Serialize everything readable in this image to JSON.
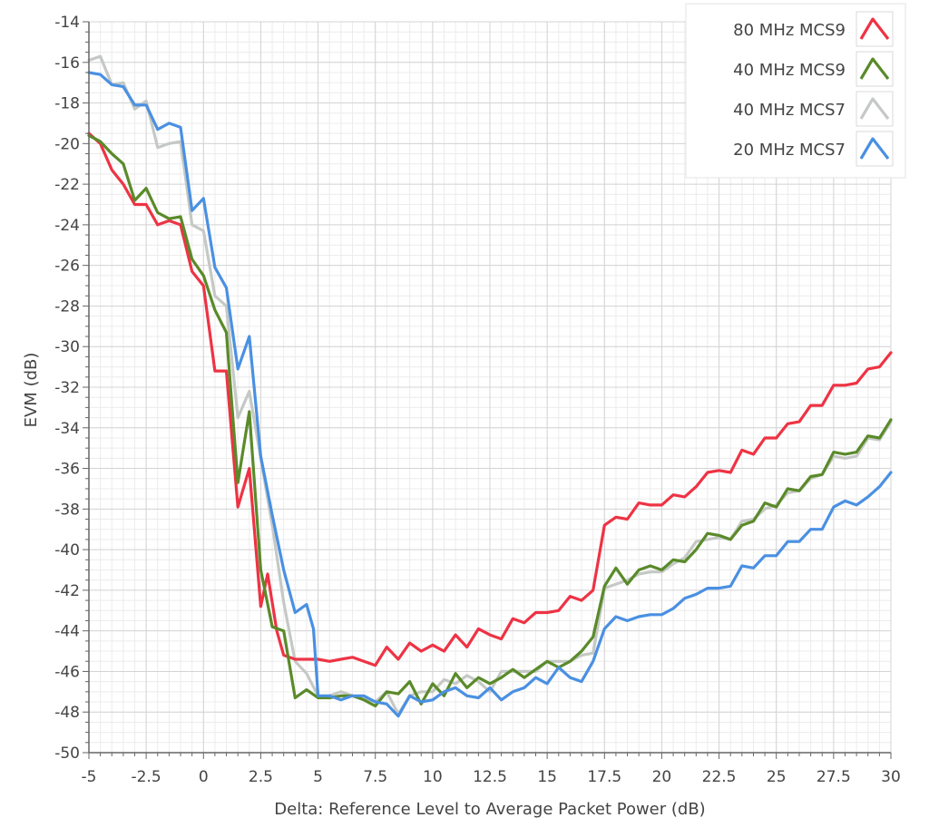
{
  "chart_data": {
    "type": "line",
    "title": "",
    "xlabel": "Delta: Reference Level to Average Packet Power (dB)",
    "ylabel": "EVM (dB)",
    "xlim": [
      -5,
      30
    ],
    "ylim": [
      -50,
      -14
    ],
    "x_ticks": [
      -5,
      -2.5,
      0,
      2.5,
      5,
      7.5,
      10,
      12.5,
      15,
      17.5,
      20,
      22.5,
      25,
      27.5,
      30
    ],
    "x_tick_labels": [
      "-5",
      "-2.5",
      "0",
      "2.5",
      "5",
      "7.5",
      "10",
      "12.5",
      "15",
      "17.5",
      "20",
      "22.5",
      "25",
      "27.5",
      "30"
    ],
    "y_ticks": [
      -14,
      -16,
      -18,
      -20,
      -22,
      -24,
      -26,
      -28,
      -30,
      -32,
      -34,
      -36,
      -38,
      -40,
      -42,
      -44,
      -46,
      -48,
      -50
    ],
    "y_tick_labels": [
      "-14",
      "-16",
      "-18",
      "-20",
      "-22",
      "-24",
      "-26",
      "-28",
      "-30",
      "-32",
      "-34",
      "-36",
      "-38",
      "-40",
      "-42",
      "-44",
      "-46",
      "-48",
      "-50"
    ],
    "grid": true,
    "legend_position": "top-right",
    "series": [
      {
        "name": "80 MHz MCS9",
        "color": "#ee3344",
        "points": [
          [
            -5,
            -19.5
          ],
          [
            -4.5,
            -20
          ],
          [
            -4,
            -21.3
          ],
          [
            -3.5,
            -22
          ],
          [
            -3,
            -23
          ],
          [
            -2.5,
            -23
          ],
          [
            -2,
            -24
          ],
          [
            -1.5,
            -23.8
          ],
          [
            -1,
            -24
          ],
          [
            -0.5,
            -26.3
          ],
          [
            0,
            -27
          ],
          [
            0.5,
            -31.2
          ],
          [
            1,
            -31.2
          ],
          [
            1.5,
            -37.9
          ],
          [
            2,
            -36
          ],
          [
            2.5,
            -42.8
          ],
          [
            2.8,
            -41.2
          ],
          [
            3.2,
            -44
          ],
          [
            3.5,
            -45.2
          ],
          [
            4,
            -45.4
          ],
          [
            4.5,
            -45.4
          ],
          [
            5,
            -45.4
          ],
          [
            5.5,
            -45.5
          ],
          [
            6,
            -45.4
          ],
          [
            6.5,
            -45.3
          ],
          [
            7,
            -45.5
          ],
          [
            7.5,
            -45.7
          ],
          [
            8,
            -44.8
          ],
          [
            8.5,
            -45.4
          ],
          [
            9,
            -44.6
          ],
          [
            9.5,
            -45
          ],
          [
            10,
            -44.7
          ],
          [
            10.5,
            -45
          ],
          [
            11,
            -44.2
          ],
          [
            11.5,
            -44.8
          ],
          [
            12,
            -43.9
          ],
          [
            12.5,
            -44.2
          ],
          [
            13,
            -44.4
          ],
          [
            13.5,
            -43.4
          ],
          [
            14,
            -43.6
          ],
          [
            14.5,
            -43.1
          ],
          [
            15,
            -43.1
          ],
          [
            15.5,
            -43
          ],
          [
            16,
            -42.3
          ],
          [
            16.5,
            -42.5
          ],
          [
            17,
            -42
          ],
          [
            17.5,
            -38.8
          ],
          [
            18,
            -38.4
          ],
          [
            18.5,
            -38.5
          ],
          [
            19,
            -37.7
          ],
          [
            19.5,
            -37.8
          ],
          [
            20,
            -37.8
          ],
          [
            20.5,
            -37.3
          ],
          [
            21,
            -37.4
          ],
          [
            21.5,
            -36.9
          ],
          [
            22,
            -36.2
          ],
          [
            22.5,
            -36.1
          ],
          [
            23,
            -36.2
          ],
          [
            23.5,
            -35.1
          ],
          [
            24,
            -35.3
          ],
          [
            24.5,
            -34.5
          ],
          [
            25,
            -34.5
          ],
          [
            25.5,
            -33.8
          ],
          [
            26,
            -33.7
          ],
          [
            26.5,
            -32.9
          ],
          [
            27,
            -32.9
          ],
          [
            27.5,
            -31.9
          ],
          [
            28,
            -31.9
          ],
          [
            28.5,
            -31.8
          ],
          [
            29,
            -31.1
          ],
          [
            29.5,
            -31
          ],
          [
            30,
            -30.3
          ]
        ]
      },
      {
        "name": "40 MHz MCS9",
        "color": "#5a8a2a",
        "points": [
          [
            -5,
            -19.6
          ],
          [
            -4.5,
            -19.9
          ],
          [
            -4,
            -20.5
          ],
          [
            -3.5,
            -21
          ],
          [
            -3,
            -22.8
          ],
          [
            -2.5,
            -22.2
          ],
          [
            -2,
            -23.4
          ],
          [
            -1.5,
            -23.7
          ],
          [
            -1,
            -23.6
          ],
          [
            -0.5,
            -25.7
          ],
          [
            0,
            -26.5
          ],
          [
            0.5,
            -28.2
          ],
          [
            1,
            -29.3
          ],
          [
            1.5,
            -36.7
          ],
          [
            2,
            -33.2
          ],
          [
            2.5,
            -41
          ],
          [
            3,
            -43.8
          ],
          [
            3.5,
            -44
          ],
          [
            4,
            -47.3
          ],
          [
            4.5,
            -46.9
          ],
          [
            5,
            -47.3
          ],
          [
            5.5,
            -47.3
          ],
          [
            6,
            -47.2
          ],
          [
            6.5,
            -47.2
          ],
          [
            7,
            -47.4
          ],
          [
            7.5,
            -47.7
          ],
          [
            8,
            -47
          ],
          [
            8.5,
            -47.1
          ],
          [
            9,
            -46.5
          ],
          [
            9.5,
            -47.6
          ],
          [
            10,
            -46.6
          ],
          [
            10.5,
            -47.2
          ],
          [
            11,
            -46.1
          ],
          [
            11.5,
            -46.8
          ],
          [
            12,
            -46.3
          ],
          [
            12.5,
            -46.6
          ],
          [
            13,
            -46.3
          ],
          [
            13.5,
            -45.9
          ],
          [
            14,
            -46.3
          ],
          [
            14.5,
            -45.9
          ],
          [
            15,
            -45.5
          ],
          [
            15.5,
            -45.8
          ],
          [
            16,
            -45.5
          ],
          [
            16.5,
            -45
          ],
          [
            17,
            -44.3
          ],
          [
            17.5,
            -41.8
          ],
          [
            18,
            -40.9
          ],
          [
            18.5,
            -41.7
          ],
          [
            19,
            -41
          ],
          [
            19.5,
            -40.8
          ],
          [
            20,
            -41
          ],
          [
            20.5,
            -40.5
          ],
          [
            21,
            -40.6
          ],
          [
            21.5,
            -40
          ],
          [
            22,
            -39.2
          ],
          [
            22.5,
            -39.3
          ],
          [
            23,
            -39.5
          ],
          [
            23.5,
            -38.8
          ],
          [
            24,
            -38.6
          ],
          [
            24.5,
            -37.7
          ],
          [
            25,
            -37.9
          ],
          [
            25.5,
            -37
          ],
          [
            26,
            -37.1
          ],
          [
            26.5,
            -36.4
          ],
          [
            27,
            -36.3
          ],
          [
            27.5,
            -35.2
          ],
          [
            28,
            -35.3
          ],
          [
            28.5,
            -35.2
          ],
          [
            29,
            -34.4
          ],
          [
            29.5,
            -34.5
          ],
          [
            30,
            -33.6
          ]
        ]
      },
      {
        "name": "40 MHz MCS7",
        "color": "#c5c9c5",
        "points": [
          [
            -5,
            -15.9
          ],
          [
            -4.5,
            -15.7
          ],
          [
            -4,
            -17.1
          ],
          [
            -3.5,
            -17
          ],
          [
            -3,
            -18.3
          ],
          [
            -2.5,
            -17.9
          ],
          [
            -2,
            -20.2
          ],
          [
            -1.5,
            -20
          ],
          [
            -1,
            -19.9
          ],
          [
            -0.5,
            -24
          ],
          [
            0,
            -24.3
          ],
          [
            0.5,
            -27.5
          ],
          [
            1,
            -28
          ],
          [
            1.5,
            -33.5
          ],
          [
            2,
            -32.2
          ],
          [
            2.5,
            -35.5
          ],
          [
            3,
            -38.8
          ],
          [
            3.5,
            -42.6
          ],
          [
            4,
            -45.5
          ],
          [
            4.5,
            -46.1
          ],
          [
            5,
            -47.2
          ],
          [
            5.5,
            -47.2
          ],
          [
            6,
            -47
          ],
          [
            6.5,
            -47.2
          ],
          [
            7,
            -47.3
          ],
          [
            7.5,
            -47.5
          ],
          [
            8,
            -47
          ],
          [
            8.5,
            -48.1
          ],
          [
            9,
            -47.2
          ],
          [
            9.5,
            -47
          ],
          [
            10,
            -47
          ],
          [
            10.5,
            -46.4
          ],
          [
            11,
            -46.6
          ],
          [
            11.5,
            -46.2
          ],
          [
            12,
            -46.5
          ],
          [
            12.5,
            -47
          ],
          [
            13,
            -46
          ],
          [
            13.5,
            -46
          ],
          [
            14,
            -46
          ],
          [
            14.5,
            -46
          ],
          [
            15,
            -45.5
          ],
          [
            15.5,
            -45.5
          ],
          [
            16,
            -45.5
          ],
          [
            16.5,
            -45.2
          ],
          [
            17,
            -45.1
          ],
          [
            17.5,
            -41.9
          ],
          [
            18,
            -41.7
          ],
          [
            18.5,
            -41.5
          ],
          [
            19,
            -41.2
          ],
          [
            19.5,
            -41.1
          ],
          [
            20,
            -41.1
          ],
          [
            20.5,
            -40.7
          ],
          [
            21,
            -40.4
          ],
          [
            21.5,
            -39.6
          ],
          [
            22,
            -39.5
          ],
          [
            22.5,
            -39.4
          ],
          [
            23,
            -39.5
          ],
          [
            23.5,
            -38.6
          ],
          [
            24,
            -38.5
          ],
          [
            24.5,
            -38
          ],
          [
            25,
            -37.8
          ],
          [
            25.5,
            -37.2
          ],
          [
            26,
            -37.1
          ],
          [
            26.5,
            -36.5
          ],
          [
            27,
            -36.3
          ],
          [
            27.5,
            -35.4
          ],
          [
            28,
            -35.5
          ],
          [
            28.5,
            -35.4
          ],
          [
            29,
            -34.5
          ],
          [
            29.5,
            -34.6
          ],
          [
            30,
            -33.7
          ]
        ]
      },
      {
        "name": "20 MHz MCS7",
        "color": "#4a90e2",
        "points": [
          [
            -5,
            -16.5
          ],
          [
            -4.5,
            -16.6
          ],
          [
            -4,
            -17.1
          ],
          [
            -3.5,
            -17.2
          ],
          [
            -3,
            -18.1
          ],
          [
            -2.5,
            -18.1
          ],
          [
            -2,
            -19.3
          ],
          [
            -1.5,
            -19
          ],
          [
            -1,
            -19.2
          ],
          [
            -0.5,
            -23.3
          ],
          [
            0,
            -22.7
          ],
          [
            0.5,
            -26.1
          ],
          [
            1,
            -27.1
          ],
          [
            1.5,
            -31.1
          ],
          [
            2,
            -29.5
          ],
          [
            2.5,
            -35.4
          ],
          [
            3,
            -38.3
          ],
          [
            3.5,
            -41
          ],
          [
            4,
            -43.1
          ],
          [
            4.5,
            -42.7
          ],
          [
            4.8,
            -43.9
          ],
          [
            5,
            -47.2
          ],
          [
            5.5,
            -47.2
          ],
          [
            6,
            -47.4
          ],
          [
            6.5,
            -47.2
          ],
          [
            7,
            -47.2
          ],
          [
            7.5,
            -47.5
          ],
          [
            8,
            -47.6
          ],
          [
            8.5,
            -48.2
          ],
          [
            9,
            -47.2
          ],
          [
            9.5,
            -47.5
          ],
          [
            10,
            -47.4
          ],
          [
            10.5,
            -47
          ],
          [
            11,
            -46.8
          ],
          [
            11.5,
            -47.2
          ],
          [
            12,
            -47.3
          ],
          [
            12.5,
            -46.8
          ],
          [
            13,
            -47.4
          ],
          [
            13.5,
            -47
          ],
          [
            14,
            -46.8
          ],
          [
            14.5,
            -46.3
          ],
          [
            15,
            -46.6
          ],
          [
            15.5,
            -45.8
          ],
          [
            16,
            -46.3
          ],
          [
            16.5,
            -46.5
          ],
          [
            17,
            -45.5
          ],
          [
            17.5,
            -43.9
          ],
          [
            18,
            -43.3
          ],
          [
            18.5,
            -43.5
          ],
          [
            19,
            -43.3
          ],
          [
            19.5,
            -43.2
          ],
          [
            20,
            -43.2
          ],
          [
            20.5,
            -42.9
          ],
          [
            21,
            -42.4
          ],
          [
            21.5,
            -42.2
          ],
          [
            22,
            -41.9
          ],
          [
            22.5,
            -41.9
          ],
          [
            23,
            -41.8
          ],
          [
            23.5,
            -40.8
          ],
          [
            24,
            -40.9
          ],
          [
            24.5,
            -40.3
          ],
          [
            25,
            -40.3
          ],
          [
            25.5,
            -39.6
          ],
          [
            26,
            -39.6
          ],
          [
            26.5,
            -39
          ],
          [
            27,
            -39
          ],
          [
            27.5,
            -37.9
          ],
          [
            28,
            -37.6
          ],
          [
            28.5,
            -37.8
          ],
          [
            29,
            -37.4
          ],
          [
            29.5,
            -36.9
          ],
          [
            30,
            -36.2
          ]
        ]
      }
    ]
  }
}
